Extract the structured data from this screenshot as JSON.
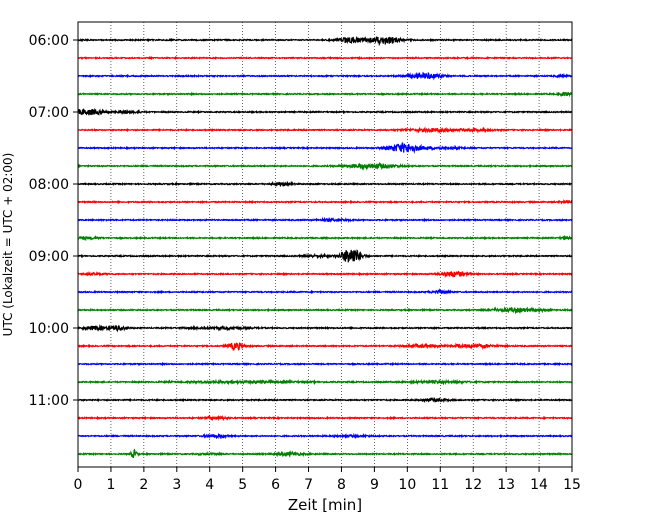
{
  "chart_data": {
    "type": "line",
    "title": "",
    "xlabel": "Zeit  [min]",
    "ylabel": "UTC (Lokalzeit = UTC + 02:00)",
    "xlim": [
      0,
      15
    ],
    "x_ticks": [
      "0",
      "1",
      "2",
      "3",
      "4",
      "5",
      "6",
      "7",
      "8",
      "9",
      "10",
      "11",
      "12",
      "13",
      "14",
      "15"
    ],
    "y_ticks": [
      "06:00",
      "07:00",
      "08:00",
      "09:00",
      "10:00",
      "11:00"
    ],
    "grid": "vertical dotted",
    "trace_color_cycle": [
      "#000000",
      "#ff0000",
      "#0000ff",
      "#008000"
    ],
    "traces": [
      {
        "start": "06:00",
        "color": "#000000",
        "events": [
          {
            "t": 8.3,
            "amp": 0.6,
            "dur": 0.7
          },
          {
            "t": 9.3,
            "amp": 0.9,
            "dur": 0.8
          }
        ]
      },
      {
        "start": "06:15",
        "color": "#ff0000",
        "events": []
      },
      {
        "start": "06:30",
        "color": "#0000ff",
        "events": [
          {
            "t": 10.5,
            "amp": 0.6,
            "dur": 0.9
          },
          {
            "t": 14.7,
            "amp": 0.2,
            "dur": 0.3
          }
        ]
      },
      {
        "start": "06:45",
        "color": "#008000",
        "events": [
          {
            "t": 14.8,
            "amp": 0.4,
            "dur": 0.3
          }
        ]
      },
      {
        "start": "07:00",
        "color": "#000000",
        "events": [
          {
            "t": 0.3,
            "amp": 0.6,
            "dur": 0.8
          },
          {
            "t": 1.5,
            "amp": 0.3,
            "dur": 0.6
          }
        ]
      },
      {
        "start": "07:15",
        "color": "#ff0000",
        "events": [
          {
            "t": 10.8,
            "amp": 0.3,
            "dur": 1.5
          },
          {
            "t": 12.2,
            "amp": 0.2,
            "dur": 0.8
          }
        ]
      },
      {
        "start": "07:30",
        "color": "#0000ff",
        "events": [
          {
            "t": 9.9,
            "amp": 1.0,
            "dur": 0.8
          },
          {
            "t": 11.0,
            "amp": 0.2,
            "dur": 1.2
          }
        ]
      },
      {
        "start": "07:45",
        "color": "#008000",
        "events": [
          {
            "t": 8.9,
            "amp": 0.5,
            "dur": 1.3
          }
        ]
      },
      {
        "start": "08:00",
        "color": "#000000",
        "events": [
          {
            "t": 6.2,
            "amp": 0.25,
            "dur": 0.5
          }
        ]
      },
      {
        "start": "08:15",
        "color": "#ff0000",
        "events": [
          {
            "t": 14.8,
            "amp": 0.25,
            "dur": 0.3
          }
        ]
      },
      {
        "start": "08:30",
        "color": "#0000ff",
        "events": [
          {
            "t": 7.8,
            "amp": 0.25,
            "dur": 0.8
          }
        ]
      },
      {
        "start": "08:45",
        "color": "#008000",
        "events": [
          {
            "t": 0.3,
            "amp": 0.2,
            "dur": 0.6
          },
          {
            "t": 14.8,
            "amp": 0.2,
            "dur": 0.3
          }
        ]
      },
      {
        "start": "09:00",
        "color": "#000000",
        "events": [
          {
            "t": 8.3,
            "amp": 1.8,
            "dur": 0.5
          },
          {
            "t": 7.3,
            "amp": 0.2,
            "dur": 0.8
          }
        ]
      },
      {
        "start": "09:15",
        "color": "#ff0000",
        "events": [
          {
            "t": 11.4,
            "amp": 0.6,
            "dur": 0.7
          },
          {
            "t": 0.5,
            "amp": 0.15,
            "dur": 0.6
          }
        ]
      },
      {
        "start": "09:30",
        "color": "#0000ff",
        "events": [
          {
            "t": 11.0,
            "amp": 0.3,
            "dur": 0.5
          }
        ]
      },
      {
        "start": "09:45",
        "color": "#008000",
        "events": [
          {
            "t": 13.3,
            "amp": 0.4,
            "dur": 1.3
          }
        ]
      },
      {
        "start": "10:00",
        "color": "#000000",
        "events": [
          {
            "t": 0.5,
            "amp": 0.4,
            "dur": 0.6
          },
          {
            "t": 1.2,
            "amp": 0.5,
            "dur": 0.4
          },
          {
            "t": 4.3,
            "amp": 0.25,
            "dur": 1.5
          }
        ]
      },
      {
        "start": "10:15",
        "color": "#ff0000",
        "events": [
          {
            "t": 4.8,
            "amp": 0.8,
            "dur": 0.4
          },
          {
            "t": 10.4,
            "amp": 0.25,
            "dur": 1.0
          },
          {
            "t": 12.0,
            "amp": 0.35,
            "dur": 1.1
          }
        ]
      },
      {
        "start": "10:30",
        "color": "#0000ff",
        "events": []
      },
      {
        "start": "10:45",
        "color": "#008000",
        "events": [
          {
            "t": 5.0,
            "amp": 0.2,
            "dur": 3.0
          },
          {
            "t": 11.0,
            "amp": 0.2,
            "dur": 1.5
          }
        ]
      },
      {
        "start": "11:00",
        "color": "#000000",
        "events": [
          {
            "t": 10.8,
            "amp": 0.3,
            "dur": 0.7
          }
        ]
      },
      {
        "start": "11:15",
        "color": "#ff0000",
        "events": [
          {
            "t": 4.2,
            "amp": 0.3,
            "dur": 0.6
          }
        ]
      },
      {
        "start": "11:30",
        "color": "#0000ff",
        "events": [
          {
            "t": 4.2,
            "amp": 0.3,
            "dur": 0.6
          },
          {
            "t": 8.3,
            "amp": 0.15,
            "dur": 1.0
          }
        ]
      },
      {
        "start": "11:45",
        "color": "#008000",
        "events": [
          {
            "t": 1.7,
            "amp": 0.9,
            "dur": 0.15
          },
          {
            "t": 6.4,
            "amp": 0.35,
            "dur": 0.7
          },
          {
            "t": 4.0,
            "amp": 0.15,
            "dur": 0.6
          }
        ]
      }
    ]
  }
}
